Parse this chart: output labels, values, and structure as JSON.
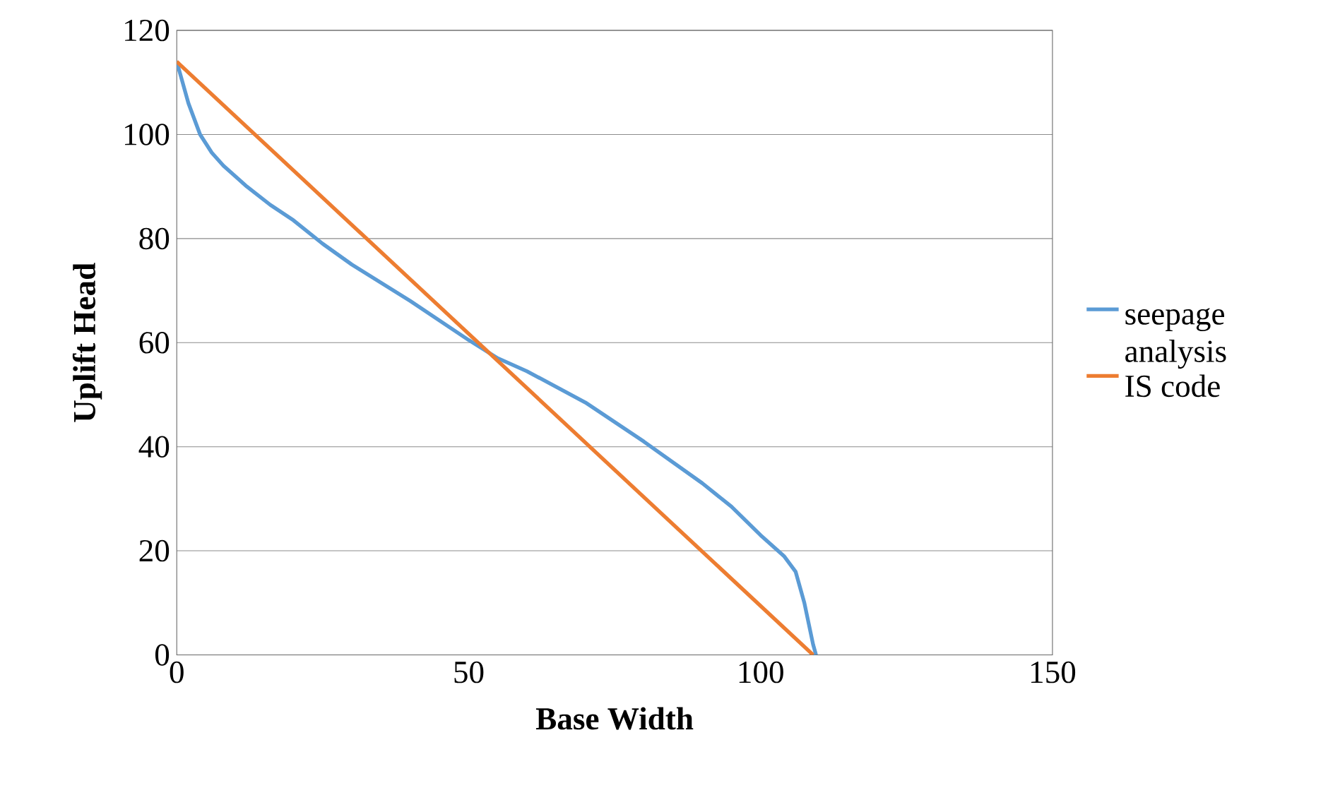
{
  "chart_data": {
    "type": "line",
    "xlabel": "Base Width",
    "ylabel": "Uplift  Head",
    "xlim": [
      0,
      150
    ],
    "ylim": [
      0,
      120
    ],
    "xticks": [
      0,
      50,
      100,
      150
    ],
    "yticks": [
      0,
      20,
      40,
      60,
      80,
      100,
      120
    ],
    "grid": "y",
    "legend": "right",
    "marker": "none",
    "line_style": "solid",
    "series": [
      {
        "name": "seepage analysis",
        "color": "#5b9bd5",
        "x": [
          0,
          2,
          4,
          6,
          8,
          12,
          16,
          20,
          25,
          30,
          40,
          50,
          55,
          60,
          70,
          80,
          90,
          95,
          100,
          104,
          106,
          107.5,
          109,
          109.5
        ],
        "values": [
          114,
          106,
          100,
          96.5,
          94,
          90,
          86.5,
          83.5,
          79,
          75,
          68,
          60.5,
          57,
          54.5,
          48.5,
          41,
          33,
          28.5,
          23,
          19,
          16,
          10,
          2,
          0
        ]
      },
      {
        "name": "IS code",
        "color": "#ed7d31",
        "x": [
          0,
          109
        ],
        "values": [
          114,
          0
        ]
      }
    ]
  }
}
